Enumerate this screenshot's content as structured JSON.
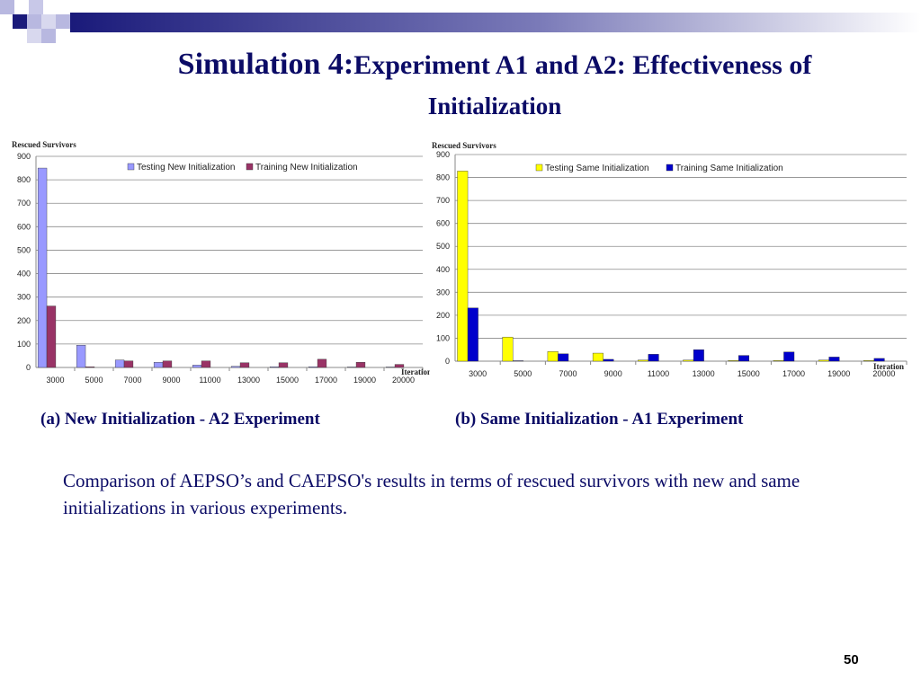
{
  "slide": {
    "title_prefix": "Simulation 4:",
    "title_main": "Experiment A1 and A2: Effectiveness of",
    "title_line2": "Initialization",
    "caption_a": "(a) New Initialization - A2 Experiment",
    "caption_b": "(b) Same Initialization - A1 Experiment",
    "description": "Comparison of AEPSO’s and CAEPSO's results in terms of rescued survivors with new and same initializations in various experiments.",
    "page_number": "50"
  },
  "chart_data": [
    {
      "type": "bar",
      "ylabel": "Rescued Survivors",
      "xlabel": "Iteration",
      "ylim": [
        0,
        900
      ],
      "yticks": [
        0,
        100,
        200,
        300,
        400,
        500,
        600,
        700,
        800,
        900
      ],
      "grid": true,
      "legend_position": "top",
      "categories": [
        "3000",
        "5000",
        "7000",
        "9000",
        "11000",
        "13000",
        "15000",
        "17000",
        "19000",
        "20000"
      ],
      "series": [
        {
          "name": "Testing New Initialization",
          "color": "#9999ff",
          "values": [
            850,
            95,
            32,
            22,
            10,
            5,
            3,
            3,
            2,
            2
          ]
        },
        {
          "name": "Training New Initialization",
          "color": "#993366",
          "values": [
            262,
            3,
            28,
            28,
            28,
            20,
            20,
            35,
            22,
            13
          ]
        }
      ]
    },
    {
      "type": "bar",
      "ylabel": "Rescued Survivors",
      "xlabel": "Iteration",
      "ylim": [
        0,
        900
      ],
      "yticks": [
        0,
        100,
        200,
        300,
        400,
        500,
        600,
        700,
        800,
        900
      ],
      "grid": true,
      "legend_position": "top",
      "categories": [
        "3000",
        "5000",
        "7000",
        "9000",
        "11000",
        "13000",
        "15000",
        "17000",
        "19000",
        "20000"
      ],
      "series": [
        {
          "name": "Testing Same Initialization",
          "color": "#ffff00",
          "values": [
            828,
            105,
            42,
            35,
            5,
            5,
            3,
            3,
            5,
            3
          ]
        },
        {
          "name": "Training Same Initialization",
          "color": "#0000cc",
          "values": [
            232,
            2,
            32,
            8,
            30,
            50,
            25,
            40,
            18,
            12
          ]
        }
      ]
    }
  ]
}
